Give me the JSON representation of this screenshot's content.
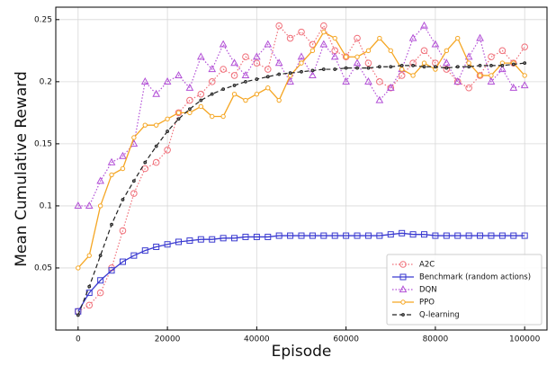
{
  "chart_data": {
    "type": "line",
    "xlabel": "Episode",
    "ylabel": "Mean Cumulative Reward",
    "x": [
      0,
      2500,
      5000,
      7500,
      10000,
      12500,
      15000,
      17500,
      20000,
      22500,
      25000,
      27500,
      30000,
      32500,
      35000,
      37500,
      40000,
      42500,
      45000,
      47500,
      50000,
      52500,
      55000,
      57500,
      60000,
      62500,
      65000,
      67500,
      70000,
      72500,
      75000,
      77500,
      80000,
      82500,
      85000,
      87500,
      90000,
      92500,
      95000,
      97500,
      100000
    ],
    "xlim": [
      -5000,
      105000
    ],
    "xticks": [
      0,
      20000,
      40000,
      60000,
      80000,
      100000
    ],
    "ylim": [
      0.0,
      0.26
    ],
    "yticks": [
      0.05,
      0.1,
      0.15,
      0.2,
      0.25
    ],
    "grid": true,
    "legend": "lower right",
    "series": [
      {
        "name": "A2C",
        "color": "#f0707a",
        "marker": "circle-open",
        "linestyle": "dotted",
        "values": [
          0.015,
          0.02,
          0.03,
          0.05,
          0.08,
          0.11,
          0.13,
          0.135,
          0.145,
          0.175,
          0.185,
          0.19,
          0.2,
          0.21,
          0.205,
          0.22,
          0.215,
          0.21,
          0.245,
          0.235,
          0.24,
          0.23,
          0.245,
          0.225,
          0.22,
          0.235,
          0.215,
          0.2,
          0.195,
          0.205,
          0.215,
          0.225,
          0.215,
          0.21,
          0.2,
          0.195,
          0.205,
          0.22,
          0.225,
          0.215,
          0.228
        ]
      },
      {
        "name": "Benchmark (random actions)",
        "color": "#3a3ad0",
        "marker": "square-open",
        "linestyle": "solid",
        "values": [
          0.015,
          0.03,
          0.04,
          0.048,
          0.055,
          0.06,
          0.064,
          0.067,
          0.069,
          0.071,
          0.072,
          0.073,
          0.073,
          0.074,
          0.074,
          0.075,
          0.075,
          0.075,
          0.076,
          0.076,
          0.076,
          0.076,
          0.076,
          0.076,
          0.076,
          0.076,
          0.076,
          0.076,
          0.077,
          0.078,
          0.077,
          0.077,
          0.076,
          0.076,
          0.076,
          0.076,
          0.076,
          0.076,
          0.076,
          0.076,
          0.076
        ]
      },
      {
        "name": "DQN",
        "color": "#b24fd6",
        "marker": "triangle-open",
        "linestyle": "dotted",
        "values": [
          0.1,
          0.1,
          0.12,
          0.135,
          0.14,
          0.15,
          0.2,
          0.19,
          0.2,
          0.205,
          0.195,
          0.22,
          0.21,
          0.23,
          0.215,
          0.205,
          0.22,
          0.23,
          0.215,
          0.2,
          0.22,
          0.205,
          0.23,
          0.22,
          0.2,
          0.215,
          0.2,
          0.185,
          0.195,
          0.21,
          0.235,
          0.245,
          0.23,
          0.215,
          0.2,
          0.22,
          0.235,
          0.2,
          0.21,
          0.195,
          0.197
        ]
      },
      {
        "name": "PPO",
        "color": "#f5a623",
        "marker": "circle-small",
        "linestyle": "solid",
        "values": [
          0.05,
          0.06,
          0.1,
          0.125,
          0.13,
          0.155,
          0.165,
          0.165,
          0.17,
          0.175,
          0.175,
          0.18,
          0.172,
          0.172,
          0.19,
          0.185,
          0.19,
          0.195,
          0.185,
          0.205,
          0.215,
          0.225,
          0.24,
          0.235,
          0.22,
          0.22,
          0.225,
          0.235,
          0.225,
          0.21,
          0.205,
          0.215,
          0.21,
          0.225,
          0.235,
          0.215,
          0.205,
          0.205,
          0.215,
          0.215,
          0.205
        ]
      },
      {
        "name": "Q-learning",
        "color": "#222222",
        "marker": "dot",
        "linestyle": "dashed",
        "values": [
          0.012,
          0.035,
          0.06,
          0.085,
          0.105,
          0.12,
          0.135,
          0.148,
          0.16,
          0.17,
          0.178,
          0.185,
          0.19,
          0.194,
          0.197,
          0.2,
          0.202,
          0.204,
          0.206,
          0.207,
          0.208,
          0.209,
          0.21,
          0.21,
          0.211,
          0.211,
          0.211,
          0.212,
          0.212,
          0.213,
          0.213,
          0.212,
          0.212,
          0.211,
          0.212,
          0.212,
          0.213,
          0.213,
          0.213,
          0.214,
          0.215
        ]
      }
    ]
  }
}
